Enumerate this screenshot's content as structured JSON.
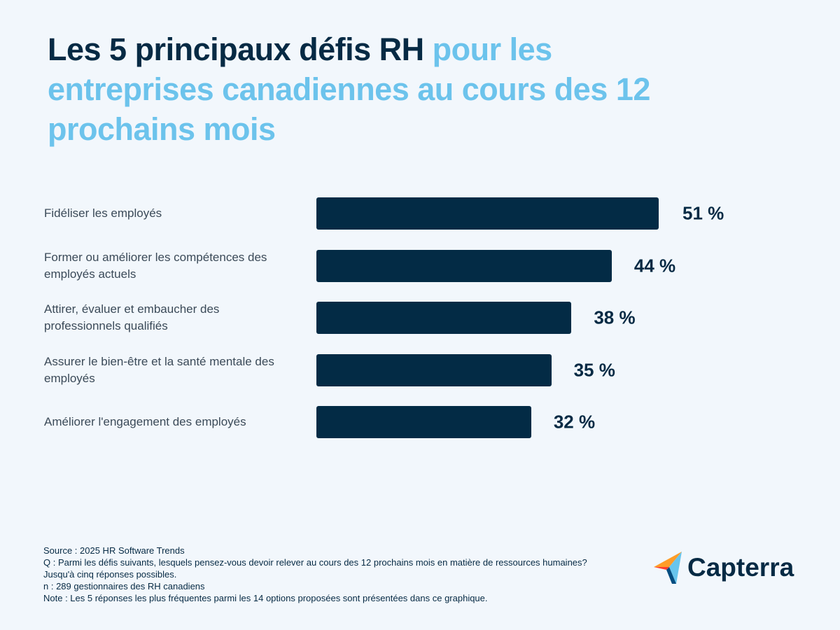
{
  "chart_data": {
    "type": "bar",
    "orientation": "horizontal",
    "title": "Les 5 principaux défis RH",
    "title_highlight": "pour les entreprises canadiennes au cours des 12 prochains mois",
    "categories": [
      "Fidéliser les employés",
      "Former ou améliorer les compétences des employés actuels",
      "Attirer, évaluer et embaucher des professionnels qualifiés",
      "Assurer le bien-être et la santé mentale des employés",
      "Améliorer l'engagement des employés"
    ],
    "values": [
      51,
      44,
      38,
      35,
      32
    ],
    "value_labels": [
      "51 %",
      "44 %",
      "38 %",
      "35 %",
      "32 %"
    ],
    "color": "#032b45",
    "notes": [
      "Source : 2025 HR Software Trends",
      "Q :  Parmi les défis suivants, lesquels pensez-vous devoir relever au cours des 12 prochains mois en matière de ressources humaines? Jusqu'à cinq réponses possibles.",
      "n : 289 gestionnaires des RH canadiens",
      "Note : Les 5 réponses les plus fréquentes parmi les 14 options proposées sont présentées dans ce graphique."
    ],
    "brand": "Capterra"
  }
}
